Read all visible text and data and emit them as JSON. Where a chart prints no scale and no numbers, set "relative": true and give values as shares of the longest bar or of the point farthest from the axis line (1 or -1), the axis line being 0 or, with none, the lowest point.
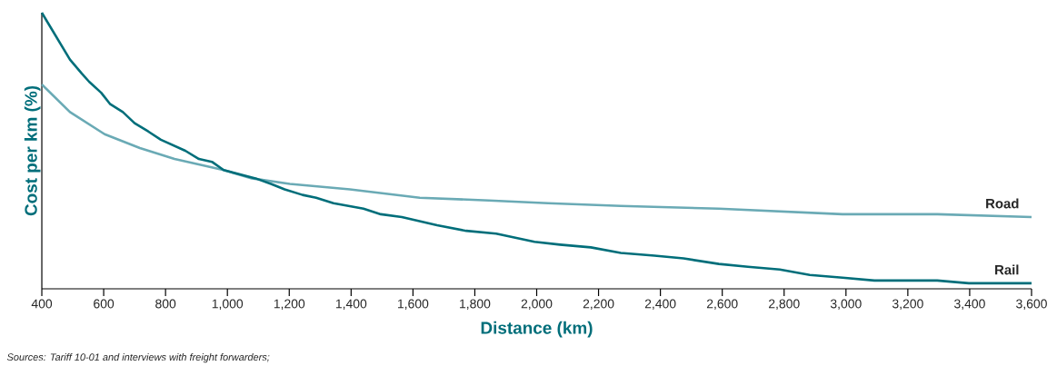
{
  "chart_data": {
    "type": "line",
    "relative": true,
    "xlabel": "Distance (km)",
    "ylabel": "Cost per km (%)",
    "annotations": [
      "Sources: Tariff 10-01 and interviews with freight forwarders;"
    ],
    "xlim": [
      400,
      3600
    ],
    "xticks": [
      {
        "value": 400,
        "label": "400"
      },
      {
        "value": 600,
        "label": "600"
      },
      {
        "value": 800,
        "label": "800"
      },
      {
        "value": 1000,
        "label": "1,000"
      },
      {
        "value": 1200,
        "label": "1,200"
      },
      {
        "value": 1400,
        "label": "1,400"
      },
      {
        "value": 1600,
        "label": "1,600"
      },
      {
        "value": 1800,
        "label": "1,800"
      },
      {
        "value": 2000,
        "label": "2,000"
      },
      {
        "value": 2200,
        "label": "2,200"
      },
      {
        "value": 2400,
        "label": "2,400"
      },
      {
        "value": 2600,
        "label": "2,600"
      },
      {
        "value": 2800,
        "label": "2,800"
      },
      {
        "value": 3000,
        "label": "3,000"
      },
      {
        "value": 3200,
        "label": "3,200"
      },
      {
        "value": 3400,
        "label": "3,400"
      },
      {
        "value": 3600,
        "label": "3,600"
      }
    ],
    "series": [
      {
        "name": "Road",
        "color": "#6aaab5",
        "x": [
          400,
          491,
          603,
          717,
          829,
          988,
          1079,
          1202,
          1396,
          1622,
          1846,
          2037,
          2272,
          2589,
          2989,
          3295,
          3600
        ],
        "values": [
          0.74,
          0.64,
          0.56,
          0.51,
          0.47,
          0.43,
          0.4,
          0.38,
          0.36,
          0.33,
          0.32,
          0.31,
          0.3,
          0.29,
          0.27,
          0.27,
          0.26
        ]
      },
      {
        "name": "Rail",
        "color": "#006e7a",
        "x": [
          400,
          491,
          529,
          553,
          592,
          620,
          662,
          700,
          744,
          785,
          864,
          908,
          950,
          988,
          1091,
          1141,
          1185,
          1243,
          1287,
          1343,
          1440,
          1496,
          1564,
          1678,
          1772,
          1869,
          1993,
          2075,
          2175,
          2272,
          2381,
          2475,
          2589,
          2683,
          2786,
          2883,
          2989,
          3092,
          3198,
          3295,
          3397,
          3497,
          3600
        ],
        "values": [
          1.0,
          0.83,
          0.78,
          0.75,
          0.71,
          0.67,
          0.64,
          0.6,
          0.57,
          0.54,
          0.5,
          0.47,
          0.46,
          0.43,
          0.4,
          0.38,
          0.36,
          0.34,
          0.33,
          0.31,
          0.29,
          0.27,
          0.26,
          0.23,
          0.21,
          0.2,
          0.17,
          0.16,
          0.15,
          0.13,
          0.12,
          0.11,
          0.09,
          0.08,
          0.07,
          0.05,
          0.04,
          0.03,
          0.03,
          0.03,
          0.02,
          0.02,
          0.02
        ]
      }
    ]
  }
}
